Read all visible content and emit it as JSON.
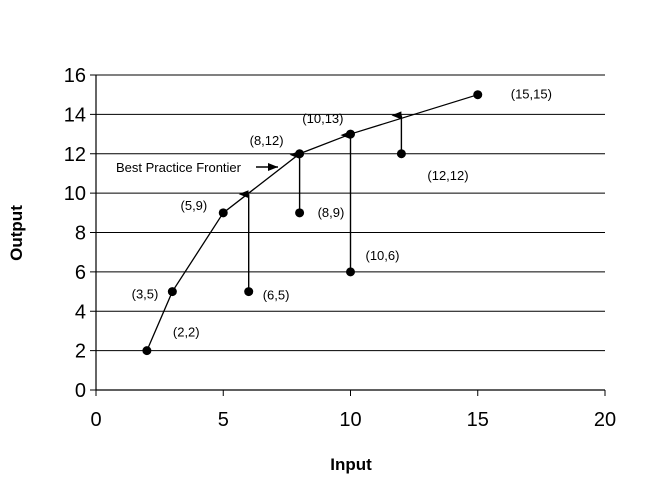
{
  "chart_data": {
    "type": "line",
    "title": "",
    "xlabel": "Input",
    "ylabel": "Output",
    "xlim": [
      0,
      20
    ],
    "ylim": [
      0,
      16
    ],
    "x_ticks": [
      0,
      5,
      10,
      15,
      20
    ],
    "y_ticks": [
      0,
      2,
      4,
      6,
      8,
      10,
      12,
      14,
      16
    ],
    "grid": "horizontal",
    "frontier": {
      "name": "Best Practice Frontier",
      "points": [
        [
          2,
          2
        ],
        [
          3,
          5
        ],
        [
          5,
          9
        ],
        [
          8,
          12
        ],
        [
          10,
          13
        ],
        [
          15,
          15
        ]
      ]
    },
    "points": [
      {
        "x": 2,
        "y": 2,
        "label": "(2,2)"
      },
      {
        "x": 3,
        "y": 5,
        "label": "(3,5)"
      },
      {
        "x": 5,
        "y": 9,
        "label": "(5,9)"
      },
      {
        "x": 8,
        "y": 12,
        "label": "(8,12)"
      },
      {
        "x": 10,
        "y": 13,
        "label": "(10,13)"
      },
      {
        "x": 15,
        "y": 15,
        "label": "(15,15)"
      },
      {
        "x": 6,
        "y": 5,
        "label": "(6,5)"
      },
      {
        "x": 8,
        "y": 9,
        "label": "(8,9)"
      },
      {
        "x": 10,
        "y": 6,
        "label": "(10,6)"
      },
      {
        "x": 12,
        "y": 12,
        "label": "(12,12)"
      }
    ],
    "projections": [
      {
        "x": 6,
        "from": 5,
        "to": 10
      },
      {
        "x": 8,
        "from": 9,
        "to": 12
      },
      {
        "x": 10,
        "from": 6,
        "to": 13
      },
      {
        "x": 12,
        "from": 12,
        "to": 14
      }
    ],
    "annotation": {
      "text": "Best Practice Frontier",
      "points_to": [
        7.2,
        11.4
      ]
    }
  }
}
